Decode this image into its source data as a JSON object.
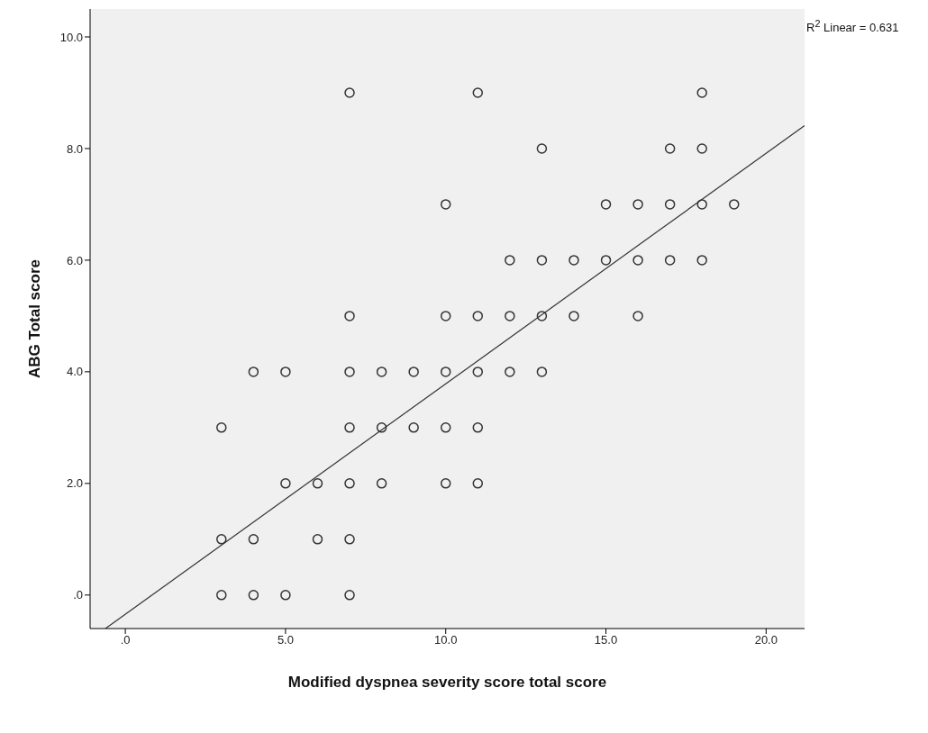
{
  "chart_data": {
    "type": "scatter",
    "xlabel": "Modified dyspnea severity score total score",
    "ylabel": "ABG Total score",
    "annotations": [
      "R$^{2}$ Linear = 0.631"
    ],
    "series": [
      {
        "marker": "circle",
        "color": "#333333",
        "x": [
          7,
          11,
          18,
          13,
          17,
          18,
          10,
          15,
          16,
          17,
          18,
          19,
          12,
          13,
          14,
          15,
          16,
          17,
          18,
          7,
          10,
          11,
          12,
          13,
          14,
          16,
          4,
          5,
          7,
          8,
          9,
          10,
          11,
          12,
          13,
          3,
          7,
          8,
          9,
          10,
          11,
          5,
          6,
          7,
          8,
          10,
          11,
          3,
          4,
          6,
          7,
          3,
          4,
          5,
          7
        ],
        "values": [
          9,
          9,
          9,
          8,
          8,
          8,
          7,
          7,
          7,
          7,
          7,
          7,
          6,
          6,
          6,
          6,
          6,
          6,
          6,
          5,
          5,
          5,
          5,
          5,
          5,
          5,
          4,
          4,
          4,
          4,
          4,
          4,
          4,
          4,
          4,
          3,
          3,
          3,
          3,
          3,
          3,
          2,
          2,
          2,
          2,
          2,
          2,
          1,
          1,
          1,
          1,
          0,
          0,
          0,
          0
        ]
      },
      {
        "type": "line",
        "marker": "none",
        "color": "#333333",
        "x": [
          -0.62,
          21.2
        ],
        "values": [
          -0.6,
          8.41
        ]
      }
    ],
    "grid": false,
    "xlim": [
      -1.1,
      21.2
    ],
    "xticks": [
      {
        "value": 0,
        "label": ".0"
      },
      {
        "value": 5,
        "label": "5.0"
      },
      {
        "value": 10,
        "label": "10.0"
      },
      {
        "value": 15,
        "label": "15.0"
      },
      {
        "value": 20,
        "label": "20.0"
      }
    ],
    "ylim": [
      -0.6,
      10.5
    ],
    "yticks": [
      {
        "value": 0,
        "label": ".0"
      },
      {
        "value": 2,
        "label": "2.0"
      },
      {
        "value": 4,
        "label": "4.0"
      },
      {
        "value": 6,
        "label": "6.0"
      },
      {
        "value": 8,
        "label": "8.0"
      },
      {
        "value": 10,
        "label": "10.0"
      }
    ]
  }
}
